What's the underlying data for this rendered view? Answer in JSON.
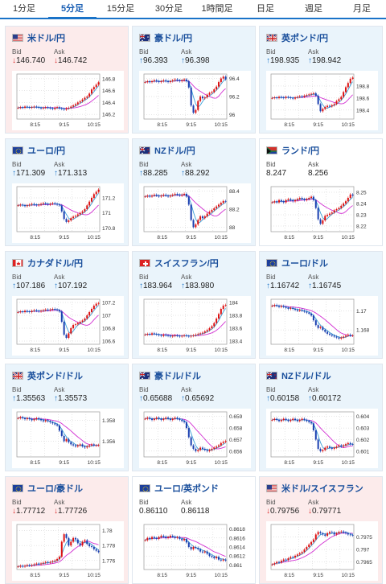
{
  "tabs": [
    {
      "label": "1分足",
      "active": false
    },
    {
      "label": "5分足",
      "active": true
    },
    {
      "label": "15分足",
      "active": false
    },
    {
      "label": "30分足",
      "active": false
    },
    {
      "label": "1時間足",
      "active": false
    },
    {
      "label": "日足",
      "active": false
    },
    {
      "label": "週足",
      "active": false
    },
    {
      "label": "月足",
      "active": false
    }
  ],
  "labels": {
    "bid": "Bid",
    "ask": "Ask"
  },
  "colors": {
    "accent": "#1a73c8",
    "up": "#d11",
    "down": "#1a3fb0",
    "ma1": "#d22fd2",
    "ma2": "#3aa0d8"
  },
  "pairs": [
    {
      "name": "米ドル/円",
      "flag": "us",
      "trend": "down",
      "bid": "146.740",
      "ask": "146.742",
      "yticks": [
        "146.8",
        "146.6",
        "146.4",
        "146.2"
      ],
      "xticks": [
        "8:15",
        "9:15",
        "10:15"
      ],
      "chart_data": {
        "type": "candlestick",
        "ylim": [
          146.12,
          146.88
        ],
        "y_ticks": [
          146.8,
          146.6,
          146.4,
          146.2
        ],
        "x_ticks": [
          "8:15",
          "9:15",
          "10:15"
        ],
        "close": [
          146.31,
          146.32,
          146.31,
          146.33,
          146.32,
          146.31,
          146.32,
          146.33,
          146.32,
          146.31,
          146.3,
          146.31,
          146.32,
          146.31,
          146.3,
          146.29,
          146.31,
          146.32,
          146.3,
          146.29,
          146.28,
          146.3,
          146.31,
          146.33,
          146.35,
          146.37,
          146.4,
          146.42,
          146.45,
          146.48,
          146.5,
          146.55,
          146.62,
          146.66,
          146.7,
          146.74
        ]
      }
    },
    {
      "name": "豪ドル/円",
      "flag": "au",
      "trend": "up",
      "bid": "96.393",
      "ask": "96.398",
      "yticks": [
        "96.4",
        "96.2",
        "96"
      ],
      "xticks": [
        "8:15",
        "9:15",
        "10:15"
      ],
      "chart_data": {
        "type": "candlestick",
        "ylim": [
          95.95,
          96.45
        ],
        "y_ticks": [
          96.4,
          96.2,
          96
        ],
        "x_ticks": [
          "8:15",
          "9:15",
          "10:15"
        ],
        "close": [
          96.36,
          96.37,
          96.36,
          96.37,
          96.38,
          96.37,
          96.36,
          96.37,
          96.38,
          96.37,
          96.36,
          96.37,
          96.38,
          96.39,
          96.38,
          96.37,
          96.38,
          96.39,
          96.37,
          96.3,
          96.1,
          96.02,
          96.05,
          96.15,
          96.2,
          96.18,
          96.19,
          96.22,
          96.24,
          96.25,
          96.28,
          96.31,
          96.36,
          96.4,
          96.42,
          96.39
        ]
      }
    },
    {
      "name": "英ポンド/円",
      "flag": "gb",
      "trend": "up",
      "bid": "198.935",
      "ask": "198.942",
      "yticks": [
        "198.8",
        "198.6",
        "198.4"
      ],
      "xticks": [
        "8:15",
        "9:15",
        "10:15"
      ],
      "chart_data": {
        "type": "candlestick",
        "ylim": [
          198.25,
          199.0
        ],
        "y_ticks": [
          198.8,
          198.6,
          198.4
        ],
        "x_ticks": [
          "8:15",
          "9:15",
          "10:15"
        ],
        "close": [
          198.6,
          198.61,
          198.6,
          198.62,
          198.61,
          198.6,
          198.62,
          198.61,
          198.6,
          198.59,
          198.61,
          198.62,
          198.63,
          198.62,
          198.64,
          198.65,
          198.66,
          198.67,
          198.68,
          198.64,
          198.5,
          198.38,
          198.42,
          198.45,
          198.47,
          198.46,
          198.48,
          198.5,
          198.55,
          198.58,
          198.62,
          198.7,
          198.78,
          198.85,
          198.92,
          198.94
        ]
      }
    },
    {
      "name": "ユーロ/円",
      "flag": "eu",
      "trend": "up",
      "bid": "171.309",
      "ask": "171.313",
      "yticks": [
        "171.2",
        "171",
        "170.8"
      ],
      "xticks": [
        "8:15",
        "9:15",
        "10:15"
      ],
      "chart_data": {
        "type": "candlestick",
        "ylim": [
          170.75,
          171.35
        ],
        "y_ticks": [
          171.2,
          171,
          170.8
        ],
        "x_ticks": [
          "8:15",
          "9:15",
          "10:15"
        ],
        "close": [
          171.1,
          171.11,
          171.1,
          171.09,
          171.1,
          171.11,
          171.12,
          171.11,
          171.1,
          171.11,
          171.12,
          171.13,
          171.12,
          171.11,
          171.12,
          171.13,
          171.12,
          171.11,
          171.1,
          171.02,
          170.92,
          170.88,
          170.9,
          170.93,
          170.95,
          170.96,
          170.98,
          171.0,
          171.02,
          171.05,
          171.1,
          171.15,
          171.2,
          171.25,
          171.28,
          171.31
        ]
      }
    },
    {
      "name": "NZドル/円",
      "flag": "nz",
      "trend": "up",
      "bid": "88.285",
      "ask": "88.292",
      "yticks": [
        "88.4",
        "88.2",
        "88"
      ],
      "xticks": [
        "8:15",
        "9:15",
        "10:15"
      ],
      "chart_data": {
        "type": "candlestick",
        "ylim": [
          87.95,
          88.45
        ],
        "y_ticks": [
          88.4,
          88.2,
          88
        ],
        "x_ticks": [
          "8:15",
          "9:15",
          "10:15"
        ],
        "close": [
          88.34,
          88.35,
          88.34,
          88.35,
          88.36,
          88.35,
          88.34,
          88.35,
          88.36,
          88.35,
          88.34,
          88.35,
          88.36,
          88.37,
          88.36,
          88.35,
          88.36,
          88.37,
          88.34,
          88.25,
          88.08,
          88.0,
          88.03,
          88.08,
          88.12,
          88.1,
          88.12,
          88.15,
          88.17,
          88.19,
          88.21,
          88.23,
          88.25,
          88.27,
          88.29,
          88.285
        ]
      }
    },
    {
      "name": "ランド/円",
      "flag": "za",
      "trend": "flat",
      "bid": "8.247",
      "ask": "8.256",
      "yticks": [
        "8.25",
        "8.24",
        "8.23",
        "8.22"
      ],
      "xticks": [
        "8:15",
        "9:15",
        "10:15"
      ],
      "chart_data": {
        "type": "candlestick",
        "ylim": [
          8.215,
          8.255
        ],
        "y_ticks": [
          8.25,
          8.24,
          8.23,
          8.22
        ],
        "x_ticks": [
          "8:15",
          "9:15",
          "10:15"
        ],
        "close": [
          8.241,
          8.242,
          8.241,
          8.243,
          8.242,
          8.241,
          8.243,
          8.244,
          8.243,
          8.242,
          8.243,
          8.244,
          8.245,
          8.244,
          8.243,
          8.244,
          8.245,
          8.246,
          8.243,
          8.236,
          8.226,
          8.222,
          8.225,
          8.229,
          8.23,
          8.231,
          8.232,
          8.234,
          8.235,
          8.236,
          8.238,
          8.24,
          8.242,
          8.245,
          8.248,
          8.247
        ]
      }
    },
    {
      "name": "カナダドル/円",
      "flag": "ca",
      "trend": "up",
      "bid": "107.186",
      "ask": "107.192",
      "yticks": [
        "107.2",
        "107",
        "106.8",
        "106.6"
      ],
      "xticks": [
        "8:15",
        "9:15",
        "10:15"
      ],
      "chart_data": {
        "type": "candlestick",
        "ylim": [
          106.55,
          107.25
        ],
        "y_ticks": [
          107.2,
          107,
          106.8,
          106.6
        ],
        "x_ticks": [
          "8:15",
          "9:15",
          "10:15"
        ],
        "close": [
          107.05,
          107.06,
          107.05,
          107.07,
          107.06,
          107.05,
          107.07,
          107.08,
          107.07,
          107.06,
          107.07,
          107.08,
          107.09,
          107.08,
          107.09,
          107.1,
          107.09,
          107.08,
          107.06,
          106.9,
          106.7,
          106.65,
          106.72,
          106.8,
          106.85,
          106.86,
          106.88,
          106.9,
          106.92,
          106.95,
          107.0,
          107.05,
          107.1,
          107.15,
          107.18,
          107.19
        ]
      }
    },
    {
      "name": "スイスフラン/円",
      "flag": "ch",
      "trend": "up",
      "bid": "183.964",
      "ask": "183.980",
      "yticks": [
        "184",
        "183.8",
        "183.6",
        "183.4"
      ],
      "xticks": [
        "8:15",
        "9:15",
        "10:15"
      ],
      "chart_data": {
        "type": "candlestick",
        "ylim": [
          183.35,
          184.05
        ],
        "y_ticks": [
          184,
          183.8,
          183.6,
          183.4
        ],
        "x_ticks": [
          "8:15",
          "9:15",
          "10:15"
        ],
        "close": [
          183.5,
          183.51,
          183.5,
          183.52,
          183.51,
          183.5,
          183.49,
          183.48,
          183.5,
          183.49,
          183.48,
          183.47,
          183.48,
          183.49,
          183.48,
          183.47,
          183.48,
          183.49,
          183.48,
          183.47,
          183.48,
          183.49,
          183.5,
          183.51,
          183.52,
          183.53,
          183.55,
          183.57,
          183.6,
          183.63,
          183.68,
          183.75,
          183.82,
          183.9,
          183.95,
          183.96
        ]
      }
    },
    {
      "name": "ユーロ/ドル",
      "flag": "eu",
      "trend": "up",
      "bid": "1.16742",
      "ask": "1.16745",
      "yticks": [
        "1.17",
        "1.168"
      ],
      "xticks": [
        "8:15",
        "9:15",
        "10:15"
      ],
      "chart_data": {
        "type": "candlestick",
        "ylim": [
          1.1665,
          1.1712
        ],
        "y_ticks": [
          1.17,
          1.168
        ],
        "x_ticks": [
          "8:15",
          "9:15",
          "10:15"
        ],
        "close": [
          1.1705,
          1.1706,
          1.1705,
          1.1704,
          1.1705,
          1.1704,
          1.1703,
          1.1702,
          1.1703,
          1.1702,
          1.1701,
          1.17,
          1.1701,
          1.17,
          1.1699,
          1.1698,
          1.1697,
          1.1695,
          1.169,
          1.1685,
          1.1682,
          1.1683,
          1.168,
          1.1678,
          1.1676,
          1.1675,
          1.1674,
          1.1673,
          1.1672,
          1.1671,
          1.1672,
          1.1673,
          1.1674,
          1.1675,
          1.1674,
          1.16742
        ]
      }
    },
    {
      "name": "英ポンド/ドル",
      "flag": "gb",
      "trend": "up",
      "bid": "1.35563",
      "ask": "1.35573",
      "yticks": [
        "1.358",
        "1.356"
      ],
      "xticks": [
        "8:15",
        "9:15",
        "10:15"
      ],
      "chart_data": {
        "type": "candlestick",
        "ylim": [
          1.3545,
          1.3588
        ],
        "y_ticks": [
          1.358,
          1.356
        ],
        "x_ticks": [
          "8:15",
          "9:15",
          "10:15"
        ],
        "close": [
          1.3582,
          1.3583,
          1.3582,
          1.3581,
          1.3582,
          1.3581,
          1.358,
          1.3581,
          1.3582,
          1.3581,
          1.358,
          1.3579,
          1.358,
          1.3579,
          1.3578,
          1.3577,
          1.3576,
          1.3575,
          1.357,
          1.3565,
          1.356,
          1.3562,
          1.3559,
          1.3557,
          1.3556,
          1.3555,
          1.3556,
          1.3557,
          1.3555,
          1.3554,
          1.3555,
          1.3556,
          1.3557,
          1.3556,
          1.3556,
          1.35563
        ]
      }
    },
    {
      "name": "豪ドル/ドル",
      "flag": "au",
      "trend": "up",
      "bid": "0.65688",
      "ask": "0.65692",
      "yticks": [
        "0.659",
        "0.658",
        "0.657",
        "0.656"
      ],
      "xticks": [
        "8:15",
        "9:15",
        "10:15"
      ],
      "chart_data": {
        "type": "candlestick",
        "ylim": [
          0.6555,
          0.6594
        ],
        "y_ticks": [
          0.659,
          0.658,
          0.657,
          0.656
        ],
        "x_ticks": [
          "8:15",
          "9:15",
          "10:15"
        ],
        "close": [
          0.6588,
          0.6589,
          0.6588,
          0.6587,
          0.6588,
          0.6589,
          0.6588,
          0.6587,
          0.6588,
          0.6589,
          0.6588,
          0.6587,
          0.6588,
          0.6589,
          0.6588,
          0.6587,
          0.6586,
          0.6585,
          0.658,
          0.6572,
          0.6565,
          0.6562,
          0.656,
          0.6561,
          0.6563,
          0.6562,
          0.6561,
          0.656,
          0.6561,
          0.6562,
          0.6563,
          0.6564,
          0.6565,
          0.6567,
          0.6568,
          0.65688
        ]
      }
    },
    {
      "name": "NZドル/ドル",
      "flag": "nz",
      "trend": "up",
      "bid": "0.60158",
      "ask": "0.60172",
      "yticks": [
        "0.604",
        "0.603",
        "0.602",
        "0.601"
      ],
      "xticks": [
        "8:15",
        "9:15",
        "10:15"
      ],
      "chart_data": {
        "type": "candlestick",
        "ylim": [
          0.6005,
          0.6044
        ],
        "y_ticks": [
          0.604,
          0.603,
          0.602,
          0.601
        ],
        "x_ticks": [
          "8:15",
          "9:15",
          "10:15"
        ],
        "close": [
          0.6037,
          0.6038,
          0.6037,
          0.6036,
          0.6037,
          0.6038,
          0.6037,
          0.6036,
          0.6037,
          0.6038,
          0.6037,
          0.6036,
          0.6037,
          0.6038,
          0.6037,
          0.6036,
          0.6035,
          0.6034,
          0.6028,
          0.602,
          0.6012,
          0.601,
          0.6011,
          0.6013,
          0.6014,
          0.6013,
          0.6012,
          0.6013,
          0.6014,
          0.6015,
          0.6014,
          0.6015,
          0.6016,
          0.6017,
          0.6016,
          0.60158
        ]
      }
    },
    {
      "name": "ユーロ/豪ドル",
      "flag": "eu",
      "trend": "down",
      "bid": "1.77712",
      "ask": "1.77726",
      "yticks": [
        "1.78",
        "1.778",
        "1.776"
      ],
      "xticks": [
        "8:15",
        "9:15",
        "10:15"
      ],
      "chart_data": {
        "type": "candlestick",
        "ylim": [
          1.7748,
          1.7808
        ],
        "y_ticks": [
          1.78,
          1.778,
          1.776
        ],
        "x_ticks": [
          "8:15",
          "9:15",
          "10:15"
        ],
        "close": [
          1.7752,
          1.7753,
          1.7752,
          1.7753,
          1.7754,
          1.7753,
          1.7754,
          1.7755,
          1.7756,
          1.7755,
          1.7756,
          1.7757,
          1.7758,
          1.7757,
          1.7758,
          1.7759,
          1.776,
          1.7762,
          1.7765,
          1.7785,
          1.7795,
          1.779,
          1.778,
          1.7785,
          1.779,
          1.7788,
          1.7783,
          1.778,
          1.7785,
          1.7787,
          1.7782,
          1.7779,
          1.7778,
          1.7775,
          1.7773,
          1.77712
        ]
      }
    },
    {
      "name": "ユーロ/英ポンド",
      "flag": "eu",
      "trend": "flat",
      "bid": "0.86110",
      "ask": "0.86118",
      "yticks": [
        "0.8618",
        "0.8616",
        "0.8614",
        "0.8612",
        "0.861"
      ],
      "xticks": [
        "8:15",
        "9:15",
        "10:15"
      ],
      "chart_data": {
        "type": "candlestick",
        "ylim": [
          0.8609,
          0.8619
        ],
        "y_ticks": [
          0.8618,
          0.8616,
          0.8614,
          0.8612,
          0.861
        ],
        "x_ticks": [
          "8:15",
          "9:15",
          "10:15"
        ],
        "close": [
          0.86155,
          0.8616,
          0.86158,
          0.86162,
          0.8616,
          0.86158,
          0.86162,
          0.86165,
          0.86163,
          0.8616,
          0.86162,
          0.86165,
          0.86163,
          0.8616,
          0.86162,
          0.86158,
          0.86155,
          0.86158,
          0.8615,
          0.8614,
          0.86135,
          0.8614,
          0.86138,
          0.86135,
          0.8613,
          0.86128,
          0.8613,
          0.86125,
          0.8612,
          0.86118,
          0.86115,
          0.86118,
          0.86112,
          0.8611,
          0.86112,
          0.8611
        ]
      }
    },
    {
      "name": "米ドル/スイスフラン",
      "flag": "us",
      "trend": "down",
      "bid": "0.79756",
      "ask": "0.79771",
      "yticks": [
        "0.7975",
        "0.797",
        "0.7965"
      ],
      "xticks": [
        "8:15",
        "9:15",
        "10:15"
      ],
      "chart_data": {
        "type": "candlestick",
        "ylim": [
          0.7962,
          0.798
        ],
        "y_ticks": [
          0.7975,
          0.797,
          0.7965
        ],
        "x_ticks": [
          "8:15",
          "9:15",
          "10:15"
        ],
        "close": [
          0.7964,
          0.79645,
          0.7965,
          0.79648,
          0.79655,
          0.7966,
          0.79658,
          0.79665,
          0.7967,
          0.79668,
          0.79675,
          0.7968,
          0.79685,
          0.7969,
          0.797,
          0.7971,
          0.7972,
          0.7973,
          0.7974,
          0.7976,
          0.7977,
          0.79765,
          0.7976,
          0.79755,
          0.79765,
          0.7977,
          0.79768,
          0.7976,
          0.79765,
          0.7977,
          0.79772,
          0.79768,
          0.79765,
          0.7976,
          0.79758,
          0.79756
        ]
      }
    }
  ]
}
